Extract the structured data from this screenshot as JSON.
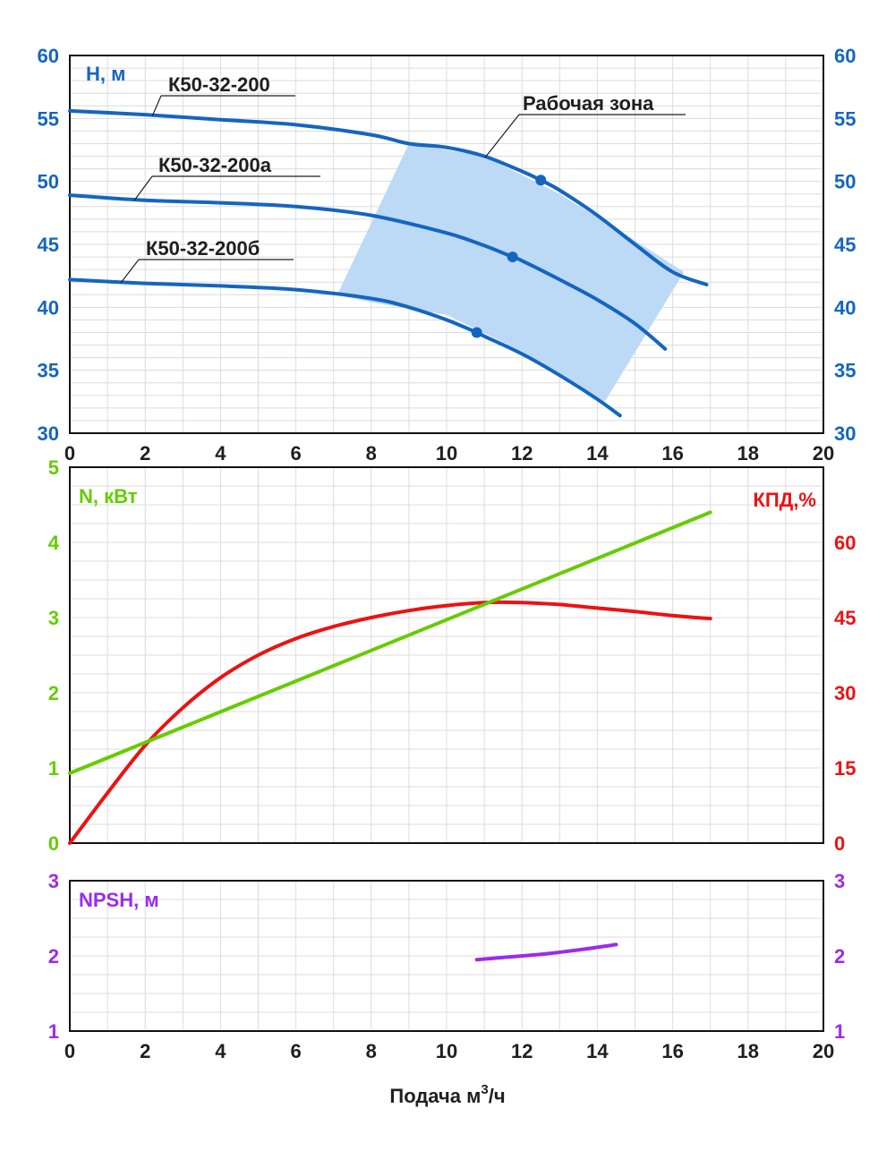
{
  "colors": {
    "head": "#1565c0",
    "power": "#66cc00",
    "efficiency": "#ee1111",
    "npsh": "#9a2bf0",
    "zone": "#bcd9f5",
    "grid": "#dcdcdc",
    "text": "#1f1f1f"
  },
  "x_axis": {
    "title": "Подача м",
    "title_sup": "3",
    "title_tail": "/ч",
    "ticks": [
      "0",
      "2",
      "4",
      "6",
      "8",
      "10",
      "12",
      "14",
      "16",
      "18",
      "20"
    ]
  },
  "chart_data": [
    {
      "type": "line",
      "panel": "head",
      "ylabel": "H, м",
      "xlim": [
        0,
        20
      ],
      "ylim": [
        30,
        60
      ],
      "y_ticks": [
        "30",
        "35",
        "40",
        "45",
        "50",
        "55",
        "60"
      ],
      "annotation": "Рабочая зона",
      "working_zone": [
        [
          7.1,
          41.0
        ],
        [
          9.0,
          53.0
        ],
        [
          11.0,
          52.0
        ],
        [
          13.0,
          49.0
        ],
        [
          15.0,
          45.3
        ],
        [
          16.3,
          42.8
        ],
        [
          14.2,
          32.5
        ],
        [
          12.0,
          36.5
        ],
        [
          10.0,
          39.4
        ],
        [
          8.0,
          40.4
        ]
      ],
      "series": [
        {
          "name": "К50-32-200",
          "x": [
            0,
            2,
            4,
            6,
            8,
            9,
            10,
            11,
            12,
            12.5,
            13,
            14,
            15,
            16,
            16.9
          ],
          "y": [
            55.6,
            55.3,
            54.9,
            54.5,
            53.7,
            53.0,
            52.7,
            52.0,
            50.8,
            50.1,
            49.3,
            47.3,
            45.0,
            42.8,
            41.8
          ],
          "markers": [
            [
              12.5,
              50.1
            ]
          ]
        },
        {
          "name": "К50-32-200а",
          "x": [
            0,
            2,
            4,
            6,
            8,
            10,
            11,
            11.75,
            12,
            13,
            14,
            15,
            15.8
          ],
          "y": [
            48.9,
            48.5,
            48.3,
            48.0,
            47.3,
            45.9,
            44.9,
            44.0,
            43.7,
            42.2,
            40.6,
            38.7,
            36.7
          ],
          "markers": [
            [
              11.75,
              44.0
            ]
          ]
        },
        {
          "name": "К50-32-200б",
          "x": [
            0,
            2,
            4,
            6,
            8,
            9,
            10,
            10.8,
            11,
            12,
            13,
            14,
            14.6
          ],
          "y": [
            42.2,
            41.9,
            41.7,
            41.4,
            40.7,
            40.0,
            39.0,
            38.0,
            37.7,
            36.3,
            34.6,
            32.7,
            31.4
          ],
          "markers": [
            [
              10.8,
              38.0
            ]
          ]
        }
      ]
    },
    {
      "type": "line",
      "panel": "power-efficiency",
      "ylabel": "N, кВт",
      "ylabel_right": "КПД,%",
      "xlim": [
        0,
        20
      ],
      "ylim": [
        0,
        5
      ],
      "ylim_right": [
        0,
        75
      ],
      "y_ticks": [
        "0",
        "1",
        "2",
        "3",
        "4",
        "5"
      ],
      "y_ticks_right": [
        "0",
        "15",
        "30",
        "45",
        "60"
      ],
      "series": [
        {
          "name": "N",
          "axis": "left",
          "x": [
            0,
            17
          ],
          "y": [
            0.93,
            4.4
          ]
        },
        {
          "name": "КПД",
          "axis": "right",
          "x": [
            0,
            1,
            2,
            3,
            4,
            5,
            6,
            7,
            8,
            9,
            10,
            11,
            12,
            13,
            14,
            15,
            16,
            17
          ],
          "y": [
            0,
            10,
            19.5,
            27,
            33,
            37.5,
            40.8,
            43.2,
            45,
            46.4,
            47.4,
            48,
            48,
            47.6,
            46.9,
            46.2,
            45.4,
            44.8
          ]
        }
      ]
    },
    {
      "type": "line",
      "panel": "npsh",
      "ylabel": "NPSH, м",
      "xlim": [
        0,
        20
      ],
      "ylim": [
        1,
        3
      ],
      "y_ticks": [
        "1",
        "2",
        "3"
      ],
      "y_ticks_right": [
        "1",
        "2",
        "3"
      ],
      "series": [
        {
          "name": "NPSH",
          "x": [
            10.8,
            11.5,
            12.5,
            13.5,
            14.5
          ],
          "y": [
            1.95,
            1.98,
            2.02,
            2.08,
            2.15
          ]
        }
      ]
    }
  ]
}
